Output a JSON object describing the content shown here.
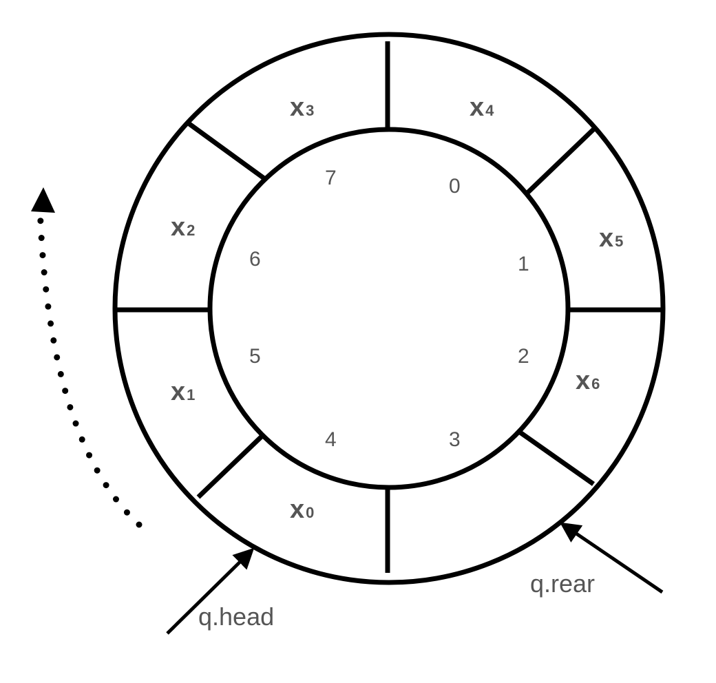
{
  "slots": [
    {
      "index": "0",
      "element": "x",
      "subscript": "4"
    },
    {
      "index": "1",
      "element": "x",
      "subscript": "5"
    },
    {
      "index": "2",
      "element": "x",
      "subscript": "6"
    },
    {
      "index": "3",
      "element": "",
      "subscript": ""
    },
    {
      "index": "4",
      "element": "x",
      "subscript": "0"
    },
    {
      "index": "5",
      "element": "x",
      "subscript": "1"
    },
    {
      "index": "6",
      "element": "x",
      "subscript": "2"
    },
    {
      "index": "7",
      "element": "x",
      "subscript": "3"
    }
  ],
  "pointers": {
    "head": "q.head",
    "rear": "q.rear"
  },
  "colors": {
    "stroke": "#000000",
    "text": "#555555"
  }
}
